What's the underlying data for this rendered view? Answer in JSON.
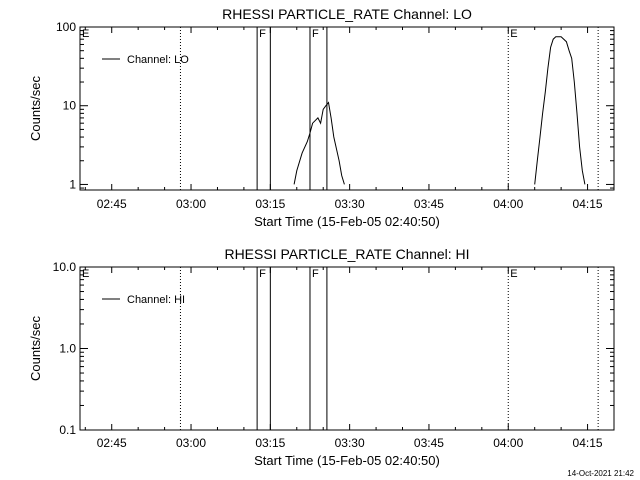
{
  "footer_timestamp": "14-Oct-2021 21:42",
  "chart_data": [
    {
      "type": "line",
      "title": "RHESSI PARTICLE_RATE Channel: LO",
      "xlabel": "Start Time (15-Feb-05 02:40:50)",
      "ylabel": "Counts/sec",
      "yscale": "log",
      "ylim": [
        0.85,
        100
      ],
      "xlim": [
        "02:39",
        "04:20"
      ],
      "x_ticks": [
        "02:45",
        "03:00",
        "03:15",
        "03:30",
        "03:45",
        "04:00",
        "04:15"
      ],
      "y_ticks": [
        "1",
        "10",
        "100"
      ],
      "legend": {
        "label": "Channel: LO",
        "position": "top-left"
      },
      "markers": [
        {
          "time": "02:39",
          "label": "E",
          "style": "solid"
        },
        {
          "time": "02:58",
          "label": "",
          "style": "dotted"
        },
        {
          "time": "03:12.5",
          "label": "F",
          "style": "solid"
        },
        {
          "time": "03:15",
          "label": "",
          "style": "solid"
        },
        {
          "time": "03:22.5",
          "label": "F",
          "style": "solid"
        },
        {
          "time": "03:25.7",
          "label": "",
          "style": "solid"
        },
        {
          "time": "04:00",
          "label": "E",
          "style": "dotted"
        },
        {
          "time": "04:17",
          "label": "",
          "style": "dotted"
        }
      ],
      "series": [
        {
          "name": "Channel: LO",
          "segments": [
            [
              [
                "03:19.5",
                1
              ],
              [
                "03:20",
                1.5
              ],
              [
                "03:21",
                2.5
              ],
              [
                "03:22",
                3.5
              ],
              [
                "03:22.5",
                4.5
              ],
              [
                "03:23",
                6
              ],
              [
                "03:24",
                7
              ],
              [
                "03:24.5",
                6
              ],
              [
                "03:25",
                9
              ],
              [
                "03:25.5",
                10
              ],
              [
                "03:26",
                11
              ],
              [
                "03:26.5",
                7
              ],
              [
                "03:27",
                4
              ],
              [
                "03:28",
                2
              ],
              [
                "03:28.5",
                1.3
              ],
              [
                "03:29",
                1
              ]
            ],
            [
              [
                "04:05",
                1
              ],
              [
                "04:05.5",
                2
              ],
              [
                "04:06",
                4
              ],
              [
                "04:06.5",
                8
              ],
              [
                "04:07",
                15
              ],
              [
                "04:07.5",
                30
              ],
              [
                "04:08",
                55
              ],
              [
                "04:08.5",
                70
              ],
              [
                "04:09",
                75
              ],
              [
                "04:10",
                75
              ],
              [
                "04:11",
                65
              ],
              [
                "04:11.5",
                50
              ],
              [
                "04:12",
                40
              ],
              [
                "04:12.5",
                20
              ],
              [
                "04:13",
                8
              ],
              [
                "04:13.5",
                3
              ],
              [
                "04:14",
                1.5
              ],
              [
                "04:14.5",
                1
              ]
            ]
          ]
        }
      ]
    },
    {
      "type": "line",
      "title": "RHESSI PARTICLE_RATE Channel: HI",
      "xlabel": "Start Time (15-Feb-05 02:40:50)",
      "ylabel": "Counts/sec",
      "yscale": "log",
      "ylim": [
        0.1,
        10
      ],
      "xlim": [
        "02:39",
        "04:20"
      ],
      "x_ticks": [
        "02:45",
        "03:00",
        "03:15",
        "03:30",
        "03:45",
        "04:00",
        "04:15"
      ],
      "y_ticks": [
        "0.1",
        "1.0",
        "10.0"
      ],
      "legend": {
        "label": "Channel: HI",
        "position": "top-left"
      },
      "markers": [
        {
          "time": "02:39",
          "label": "E",
          "style": "solid"
        },
        {
          "time": "02:58",
          "label": "",
          "style": "dotted"
        },
        {
          "time": "03:12.5",
          "label": "F",
          "style": "solid"
        },
        {
          "time": "03:15",
          "label": "",
          "style": "solid"
        },
        {
          "time": "03:22.5",
          "label": "F",
          "style": "solid"
        },
        {
          "time": "03:25.7",
          "label": "",
          "style": "solid"
        },
        {
          "time": "04:00",
          "label": "E",
          "style": "dotted"
        },
        {
          "time": "04:17",
          "label": "",
          "style": "dotted"
        }
      ],
      "series": [
        {
          "name": "Channel: HI",
          "segments": []
        }
      ]
    }
  ]
}
